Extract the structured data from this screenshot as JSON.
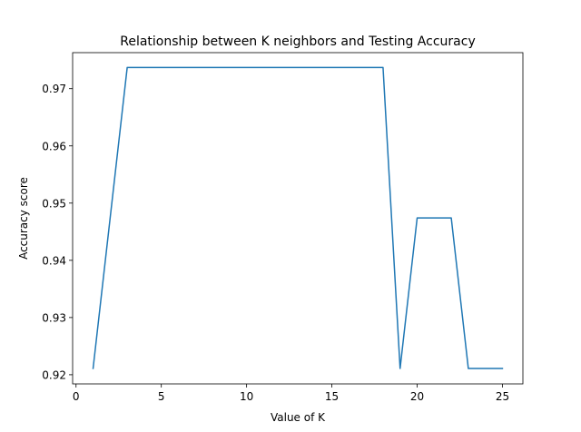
{
  "chart_data": {
    "type": "line",
    "title": "Relationship between K neighbors and Testing Accuracy",
    "xlabel": "Value of K",
    "ylabel": "Accuracy score",
    "x": [
      1,
      2,
      3,
      4,
      5,
      6,
      7,
      8,
      9,
      10,
      11,
      12,
      13,
      14,
      15,
      16,
      17,
      18,
      19,
      20,
      21,
      22,
      23,
      24,
      25
    ],
    "series": [
      {
        "values": [
          0.9211,
          0.9474,
          0.9737,
          0.9737,
          0.9737,
          0.9737,
          0.9737,
          0.9737,
          0.9737,
          0.9737,
          0.9737,
          0.9737,
          0.9737,
          0.9737,
          0.9737,
          0.9737,
          0.9737,
          0.9737,
          0.9211,
          0.9474,
          0.9474,
          0.9474,
          0.9211,
          0.9211,
          0.9211
        ],
        "color": "#1f77b4"
      }
    ],
    "xlim": [
      -0.2,
      26.2
    ],
    "ylim": [
      0.9184,
      0.9763
    ],
    "xticks": [
      0,
      5,
      10,
      15,
      20,
      25
    ],
    "xtick_labels": [
      "0",
      "5",
      "10",
      "15",
      "20",
      "25"
    ],
    "yticks": [
      0.92,
      0.93,
      0.94,
      0.95,
      0.96,
      0.97
    ],
    "ytick_labels": [
      "0.92",
      "0.93",
      "0.94",
      "0.95",
      "0.96",
      "0.97"
    ],
    "grid": false,
    "legend": "none"
  }
}
